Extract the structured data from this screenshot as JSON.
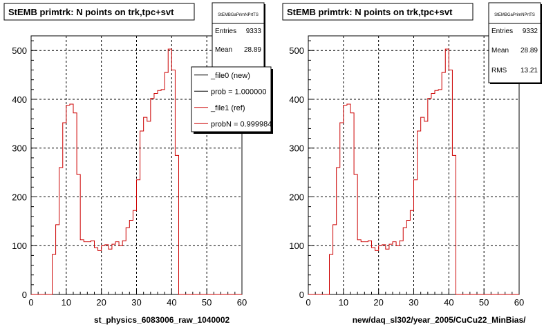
{
  "chart_data": [
    {
      "type": "histogram",
      "title": "StEMB primtrk: N points on trk,tpc+svt",
      "xlabel": "st_physics_6083006_raw_1040002",
      "xlim": [
        0,
        60
      ],
      "ylim": [
        0,
        530
      ],
      "x_ticks": [
        0,
        10,
        20,
        30,
        40,
        50,
        60
      ],
      "y_ticks": [
        0,
        100,
        200,
        300,
        400,
        500
      ],
      "grid": true,
      "line_color": "#cc0000",
      "bin_width": 1,
      "bins_x_start": 6,
      "values": [
        82,
        143,
        260,
        352,
        388,
        390,
        372,
        246,
        112,
        108,
        108,
        110,
        96,
        90,
        100,
        102,
        93,
        103,
        108,
        100,
        110,
        137,
        152,
        172,
        235,
        335,
        363,
        355,
        402,
        412,
        418,
        420,
        455,
        503,
        460,
        285,
        0
      ],
      "stats": {
        "header": "StEMBGaPrimNPrtTS",
        "rows": [
          {
            "label": "Entries",
            "value": "9333"
          },
          {
            "label": "Mean",
            "value": "28.89"
          }
        ]
      },
      "legend": {
        "placement": "top-right",
        "entries": [
          {
            "label": "_file0 (new)",
            "color": "#000000"
          },
          {
            "label": "prob = 1.000000",
            "color": "#000000"
          },
          {
            "label": "_file1 (ref)",
            "color": "#cc0000"
          },
          {
            "label": "probN = 0.999984",
            "color": "#cc0000"
          }
        ]
      }
    },
    {
      "type": "histogram",
      "title": "StEMB primtrk: N points on trk,tpc+svt",
      "xlabel": "new/daq_sl302/year_2005/CuCu22_MinBias/",
      "xlim": [
        0,
        60
      ],
      "ylim": [
        0,
        530
      ],
      "x_ticks": [
        0,
        10,
        20,
        30,
        40,
        50,
        60
      ],
      "y_ticks": [
        0,
        100,
        200,
        300,
        400,
        500
      ],
      "grid": true,
      "line_color": "#cc0000",
      "bin_width": 1,
      "bins_x_start": 6,
      "values": [
        82,
        143,
        260,
        352,
        388,
        390,
        372,
        246,
        112,
        108,
        108,
        110,
        96,
        90,
        100,
        102,
        93,
        103,
        108,
        100,
        110,
        137,
        152,
        172,
        235,
        335,
        363,
        355,
        402,
        412,
        418,
        420,
        455,
        503,
        460,
        285,
        0
      ],
      "stats": {
        "header": "StEMBGaPrimNPrtTS",
        "rows": [
          {
            "label": "Entries",
            "value": "9332"
          },
          {
            "label": "Mean",
            "value": "28.89"
          },
          {
            "label": "RMS",
            "value": "13.21"
          }
        ]
      }
    }
  ]
}
